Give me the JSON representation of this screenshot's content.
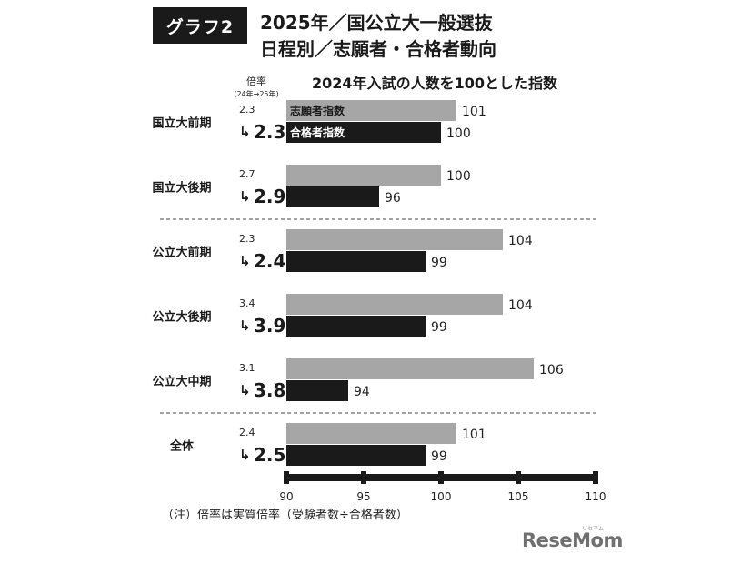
{
  "header": {
    "badge": "グラフ2",
    "title_line1": "2025年／国公立大一般選抜",
    "title_line2": "日程別／志願者・合格者動向"
  },
  "chart_data": {
    "type": "bar",
    "orientation": "horizontal",
    "title": "2024年入試の人数を100とした指数",
    "ratio_header": "倍率",
    "ratio_subheader": "(24年→25年)",
    "categories": [
      "国立大前期",
      "国立大後期",
      "公立大前期",
      "公立大後期",
      "公立大中期",
      "全体"
    ],
    "series": [
      {
        "name": "志願者指数",
        "color": "#a6a6a6",
        "values": [
          101,
          100,
          104,
          104,
          106,
          101
        ]
      },
      {
        "name": "合格者指数",
        "color": "#1a1a1a",
        "values": [
          100,
          96,
          99,
          99,
          94,
          99
        ]
      }
    ],
    "ratios": [
      {
        "prev": "2.3",
        "curr": "2.3"
      },
      {
        "prev": "2.7",
        "curr": "2.9"
      },
      {
        "prev": "2.3",
        "curr": "2.4"
      },
      {
        "prev": "3.4",
        "curr": "3.9"
      },
      {
        "prev": "3.1",
        "curr": "3.8"
      },
      {
        "prev": "2.4",
        "curr": "2.5"
      }
    ],
    "xlim": [
      90,
      110
    ],
    "xticks": [
      "90",
      "95",
      "100",
      "105",
      "110"
    ],
    "group_separators_after": [
      1,
      4
    ],
    "legend": "inside first bars"
  },
  "footer": {
    "note": "（注）倍率は実質倍率（受験者数÷合格者数）",
    "logo": "ReseMom",
    "logo_small": "リセマム"
  }
}
